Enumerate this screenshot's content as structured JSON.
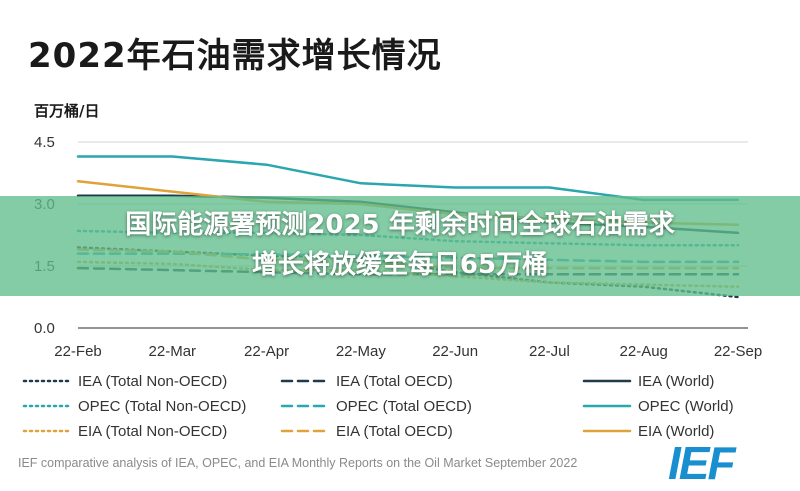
{
  "title": "2022年石油需求增长情况",
  "unit_label": "百万桶/日",
  "source": "IEF comparative analysis of IEA, OPEC, and EIA Monthly Reports on the Oil Market September 2022",
  "logo_text": "IEF",
  "overlay": {
    "line1": "国际能源署预测2025 年剩余时间全球石油需求",
    "line2": "增长将放缓至每日65万桶"
  },
  "chart_data": {
    "type": "line",
    "x": [
      "22-Feb",
      "22-Mar",
      "22-Apr",
      "22-May",
      "22-Jun",
      "22-Jul",
      "22-Aug",
      "22-Sep"
    ],
    "ylim": [
      0,
      4.5
    ],
    "yticks": [
      "0.0",
      "1.5",
      "3.0",
      "4.5"
    ],
    "grid": true,
    "legend_position": "bottom",
    "series": [
      {
        "name": "IEA (Total Non-OECD)",
        "color": "#1f3a4d",
        "style": "dotted",
        "values": [
          1.95,
          1.85,
          1.75,
          1.7,
          1.35,
          1.1,
          1.0,
          0.75
        ]
      },
      {
        "name": "IEA (Total OECD)",
        "color": "#1f3a4d",
        "style": "dashed",
        "values": [
          1.45,
          1.4,
          1.35,
          1.3,
          1.3,
          1.3,
          1.3,
          1.3
        ]
      },
      {
        "name": "IEA (World)",
        "color": "#1f3a4d",
        "style": "solid",
        "values": [
          3.2,
          3.2,
          3.15,
          3.05,
          2.8,
          2.55,
          2.45,
          2.3
        ]
      },
      {
        "name": "OPEC (Total Non-OECD)",
        "color": "#29a6b0",
        "style": "dotted",
        "values": [
          2.35,
          2.3,
          2.3,
          2.25,
          2.1,
          2.05,
          2.0,
          2.0
        ]
      },
      {
        "name": "OPEC (Total OECD)",
        "color": "#29a6b0",
        "style": "dashed",
        "values": [
          1.8,
          1.8,
          1.78,
          1.75,
          1.7,
          1.65,
          1.6,
          1.6
        ]
      },
      {
        "name": "OPEC (World)",
        "color": "#29a6b0",
        "style": "solid",
        "values": [
          4.15,
          4.15,
          3.95,
          3.5,
          3.4,
          3.4,
          3.1,
          3.1
        ]
      },
      {
        "name": "EIA (Total Non-OECD)",
        "color": "#e0a23a",
        "style": "dotted",
        "values": [
          1.6,
          1.55,
          1.4,
          1.4,
          1.25,
          1.1,
          1.05,
          1.0
        ]
      },
      {
        "name": "EIA (Total OECD)",
        "color": "#e0a23a",
        "style": "dashed",
        "values": [
          1.9,
          1.85,
          1.65,
          1.6,
          1.45,
          1.45,
          1.45,
          1.45
        ]
      },
      {
        "name": "EIA (World)",
        "color": "#e0a23a",
        "style": "solid",
        "values": [
          3.55,
          3.3,
          3.05,
          3.0,
          2.75,
          2.65,
          2.55,
          2.5
        ]
      }
    ]
  }
}
